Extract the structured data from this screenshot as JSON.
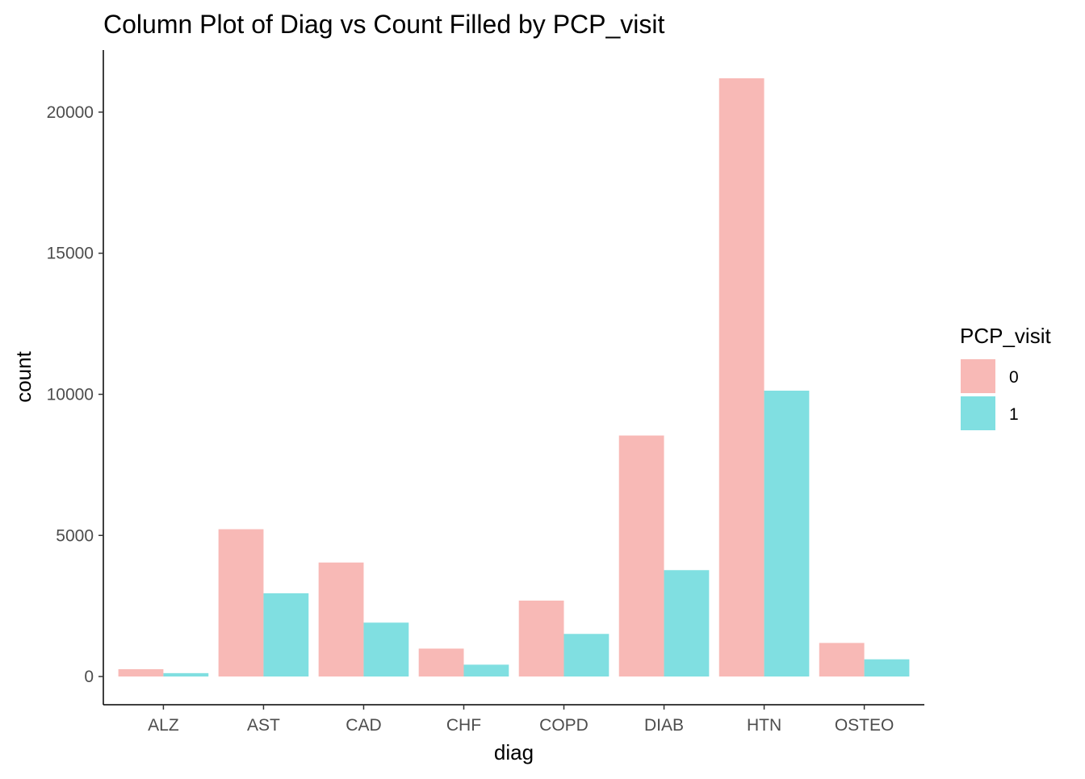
{
  "chart_data": {
    "type": "bar",
    "title": "Column Plot of Diag vs Count Filled by PCP_visit",
    "xlabel": "diag",
    "ylabel": "count",
    "categories": [
      "ALZ",
      "AST",
      "CAD",
      "CHF",
      "COPD",
      "DIAB",
      "HTN",
      "OSTEO"
    ],
    "series": [
      {
        "name": "0",
        "color": "#F8B9B6",
        "values": [
          260,
          5220,
          4040,
          990,
          2690,
          8540,
          21200,
          1190
        ]
      },
      {
        "name": "1",
        "color": "#80DFE1",
        "values": [
          120,
          2950,
          1910,
          420,
          1510,
          3770,
          10130,
          610
        ]
      }
    ],
    "ylim": [
      -1000,
      22200
    ],
    "yticks": [
      0,
      5000,
      10000,
      15000,
      20000
    ],
    "ytick_labels": [
      "0",
      "5000",
      "10000",
      "15000",
      "20000"
    ],
    "legend": {
      "title": "PCP_visit",
      "position": "right"
    },
    "grid": false
  }
}
